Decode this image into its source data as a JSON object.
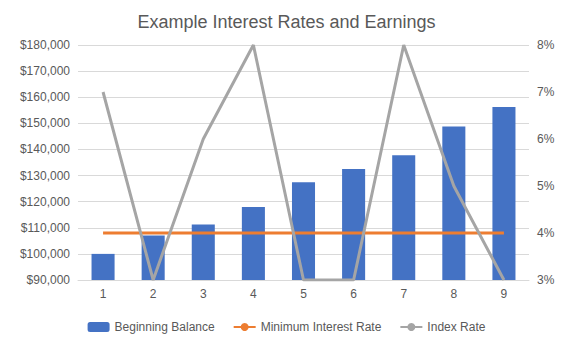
{
  "chart_data": {
    "type": "bar",
    "title": "Example Interest Rates and Earnings",
    "categories": [
      "1",
      "2",
      "3",
      "4",
      "5",
      "6",
      "7",
      "8",
      "9"
    ],
    "series": [
      {
        "name": "Beginning Balance",
        "type": "bar",
        "color": "#4472c4",
        "values": [
          100000,
          107000,
          111280,
          117957,
          127393,
          132489,
          137789,
          148812,
          156253
        ]
      },
      {
        "name": "Minimum Interest Rate",
        "type": "line",
        "axis": "y2",
        "color": "#ed7d31",
        "values": [
          4,
          4,
          4,
          4,
          4,
          4,
          4,
          4,
          4
        ]
      },
      {
        "name": "Index Rate",
        "type": "line",
        "axis": "y2",
        "color": "#a5a5a5",
        "values": [
          7,
          3,
          6,
          8,
          3,
          3,
          8,
          5,
          3
        ]
      }
    ],
    "ylim": [
      90000,
      180000
    ],
    "yticks": [
      {
        "value": 90000,
        "label": "$90,000"
      },
      {
        "value": 100000,
        "label": "$100,000"
      },
      {
        "value": 110000,
        "label": "$110,000"
      },
      {
        "value": 120000,
        "label": "$120,000"
      },
      {
        "value": 130000,
        "label": "$130,000"
      },
      {
        "value": 140000,
        "label": "$140,000"
      },
      {
        "value": 150000,
        "label": "$150,000"
      },
      {
        "value": 160000,
        "label": "$160,000"
      },
      {
        "value": 170000,
        "label": "$170,000"
      },
      {
        "value": 180000,
        "label": "$180,000"
      }
    ],
    "y2lim": [
      3,
      8
    ],
    "y2ticks": [
      {
        "value": 3,
        "label": "3%"
      },
      {
        "value": 4,
        "label": "4%"
      },
      {
        "value": 5,
        "label": "5%"
      },
      {
        "value": 6,
        "label": "6%"
      },
      {
        "value": 7,
        "label": "7%"
      },
      {
        "value": 8,
        "label": "8%"
      }
    ],
    "grid": true,
    "legend": "bottom"
  }
}
